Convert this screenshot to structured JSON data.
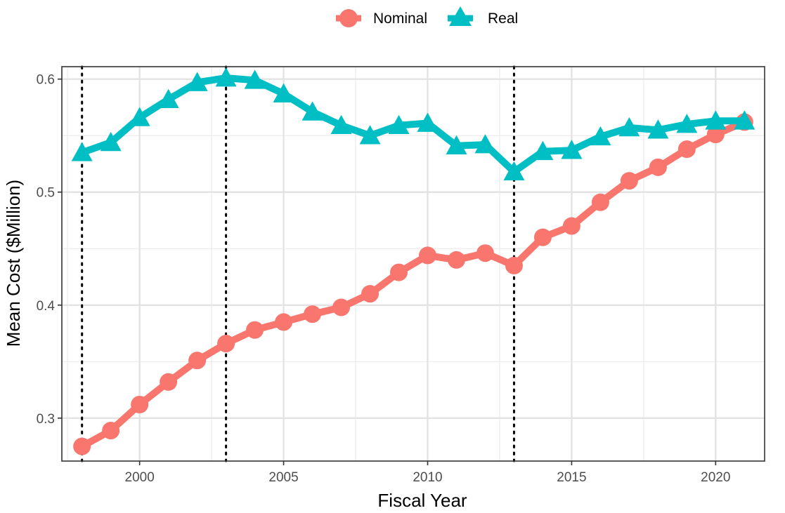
{
  "chart_data": {
    "type": "line",
    "xlabel": "Fiscal Year",
    "ylabel": "Mean Cost ($Million)",
    "xlim": [
      1997.3,
      2021.7
    ],
    "ylim": [
      0.262,
      0.611
    ],
    "x_ticks": [
      2000,
      2005,
      2010,
      2015,
      2020
    ],
    "x_minor_ticks": [
      1997.5,
      2002.5,
      2007.5,
      2012.5,
      2017.5
    ],
    "y_ticks": [
      0.3,
      0.4,
      0.5,
      0.6
    ],
    "y_tick_labels": [
      "0.3",
      "0.4",
      "0.5",
      "0.6"
    ],
    "y_minor_ticks": [
      0.35,
      0.45,
      0.55
    ],
    "grid": true,
    "legend_position": "top",
    "vlines": [
      1998,
      2003,
      2013
    ],
    "x": [
      1998,
      1999,
      2000,
      2001,
      2002,
      2003,
      2004,
      2005,
      2006,
      2007,
      2008,
      2009,
      2010,
      2011,
      2012,
      2013,
      2014,
      2015,
      2016,
      2017,
      2018,
      2019,
      2020,
      2021
    ],
    "series": [
      {
        "name": "Nominal",
        "color": "#F8766D",
        "marker": "circle",
        "values": [
          0.275,
          0.289,
          0.312,
          0.332,
          0.351,
          0.366,
          0.378,
          0.385,
          0.392,
          0.398,
          0.41,
          0.429,
          0.444,
          0.44,
          0.446,
          0.435,
          0.46,
          0.47,
          0.491,
          0.51,
          0.522,
          0.538,
          0.551,
          0.562
        ]
      },
      {
        "name": "Real",
        "color": "#00BFC4",
        "marker": "triangle",
        "values": [
          0.535,
          0.544,
          0.566,
          0.582,
          0.597,
          0.601,
          0.599,
          0.587,
          0.571,
          0.559,
          0.55,
          0.559,
          0.561,
          0.541,
          0.542,
          0.518,
          0.536,
          0.537,
          0.549,
          0.557,
          0.555,
          0.56,
          0.563,
          0.563
        ]
      }
    ]
  }
}
